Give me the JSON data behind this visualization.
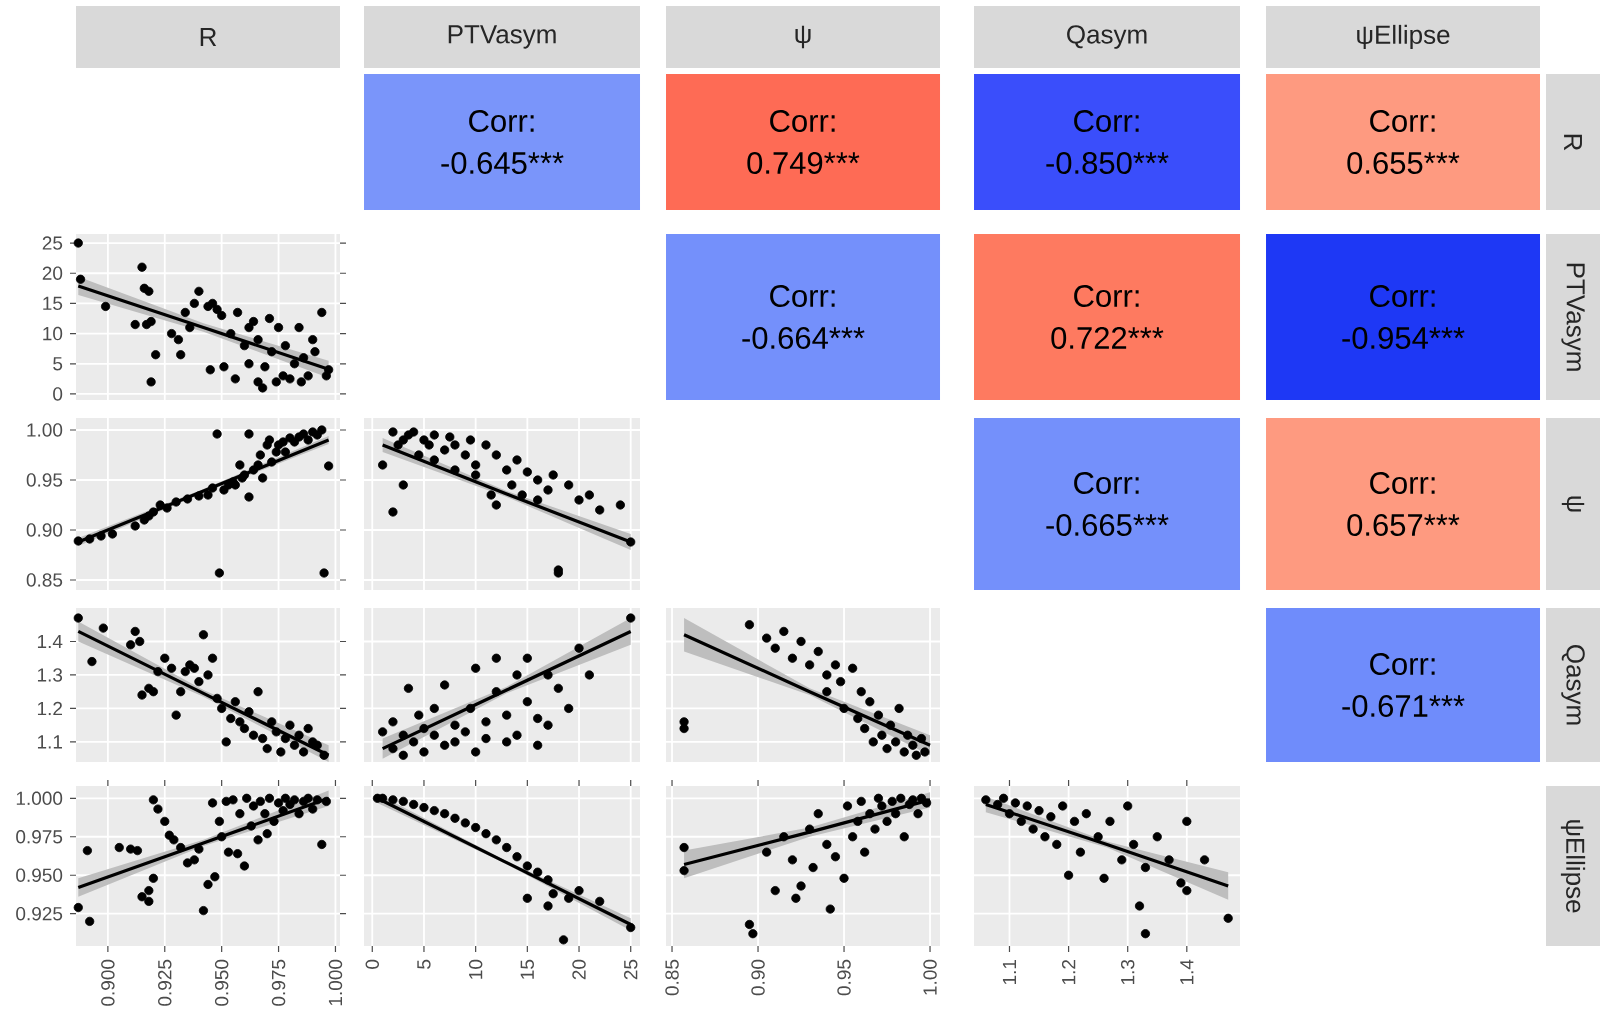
{
  "chart_data": [
    {
      "type": "other",
      "title": "R"
    },
    {
      "type": "other",
      "title": "PTVasym",
      "annotations": [
        "Corr: -0.645***"
      ],
      "colors": [
        "#7a95fa"
      ]
    },
    {
      "type": "other",
      "title": "ψ",
      "annotations": [
        "Corr: 0.749***"
      ],
      "colors": [
        "#fe6b55"
      ]
    },
    {
      "type": "other",
      "title": "Qasym",
      "annotations": [
        "Corr: -0.850***"
      ],
      "colors": [
        "#3a4efb"
      ]
    },
    {
      "type": "other",
      "title": "ψEllipse",
      "ylabel": "R",
      "annotations": [
        "Corr: 0.655***"
      ],
      "colors": [
        "#fe9a80"
      ]
    },
    {
      "type": "scatter",
      "xlim": [
        0.886,
        1.002
      ],
      "ylim": [
        -1,
        26.5
      ],
      "xticks": [
        0.9,
        0.925,
        0.95,
        0.975,
        1.0
      ],
      "yticks": [
        0,
        5,
        10,
        15,
        20,
        25
      ],
      "grid": true,
      "tick_labels": "y",
      "series": [
        {
          "type": "scatter",
          "marker": "circle",
          "color": "#000000",
          "x": [
            0.887,
            0.888,
            0.899,
            0.915,
            0.916,
            0.918,
            0.912,
            0.917,
            0.919,
            0.921,
            0.919,
            0.928,
            0.931,
            0.932,
            0.934,
            0.936,
            0.938,
            0.94,
            0.944,
            0.946,
            0.948,
            0.95,
            0.945,
            0.951,
            0.954,
            0.956,
            0.957,
            0.96,
            0.962,
            0.962,
            0.964,
            0.966,
            0.966,
            0.968,
            0.969,
            0.971,
            0.972,
            0.974,
            0.975,
            0.977,
            0.978,
            0.98,
            0.982,
            0.984,
            0.985,
            0.986,
            0.988,
            0.99,
            0.991,
            0.994,
            0.996,
            0.997
          ],
          "values": [
            25,
            19,
            14.5,
            21,
            17.5,
            17,
            11.5,
            11.5,
            12,
            6.5,
            2,
            10,
            9,
            6.5,
            13.5,
            11,
            15,
            17,
            14.5,
            15,
            14,
            13,
            4,
            4.5,
            10,
            2.5,
            13.5,
            8,
            11,
            5,
            12,
            9,
            2,
            1,
            4.5,
            12.5,
            7,
            2,
            11,
            3,
            8,
            2.5,
            5,
            11,
            2,
            6,
            3,
            9,
            7,
            13.5,
            3,
            4
          ]
        },
        {
          "type": "line",
          "color": "#000000",
          "x": [
            0.887,
            0.942,
            0.997
          ],
          "values": [
            17.9,
            11,
            4.1
          ],
          "lower": [
            16.4,
            10.3,
            2.7
          ],
          "upper": [
            19.4,
            11.7,
            5.5
          ]
        }
      ]
    },
    {
      "type": "other",
      "annotations": [
        "Corr: -0.664***"
      ],
      "colors": [
        "#7490fb"
      ]
    },
    {
      "type": "other",
      "annotations": [
        "Corr: 0.722***"
      ],
      "colors": [
        "#fe7a60"
      ]
    },
    {
      "type": "other",
      "ylabel": "PTVasym",
      "annotations": [
        "Corr: -0.954***"
      ],
      "colors": [
        "#1e38f5"
      ]
    },
    {
      "type": "scatter",
      "xlim": [
        0.886,
        1.002
      ],
      "ylim": [
        0.84,
        1.012
      ],
      "xticks": [
        0.9,
        0.925,
        0.95,
        0.975,
        1.0
      ],
      "yticks": [
        {
          "value": 0.85,
          "label": "0.85"
        },
        {
          "value": 0.9,
          "label": "0.90"
        },
        {
          "value": 0.95,
          "label": "0.95"
        },
        {
          "value": 1.0,
          "label": "1.00"
        }
      ],
      "grid": true,
      "tick_labels": "y",
      "series": [
        {
          "type": "scatter",
          "marker": "circle",
          "color": "#000000",
          "x": [
            0.887,
            0.892,
            0.897,
            0.902,
            0.912,
            0.916,
            0.918,
            0.92,
            0.923,
            0.926,
            0.93,
            0.935,
            0.94,
            0.944,
            0.946,
            0.948,
            0.949,
            0.951,
            0.953,
            0.955,
            0.956,
            0.958,
            0.959,
            0.96,
            0.962,
            0.962,
            0.964,
            0.966,
            0.967,
            0.968,
            0.97,
            0.971,
            0.972,
            0.974,
            0.975,
            0.977,
            0.978,
            0.98,
            0.982,
            0.984,
            0.986,
            0.988,
            0.99,
            0.992,
            0.994,
            0.995,
            0.997
          ],
          "values": [
            0.889,
            0.891,
            0.894,
            0.896,
            0.904,
            0.91,
            0.914,
            0.918,
            0.925,
            0.922,
            0.928,
            0.931,
            0.934,
            0.935,
            0.942,
            0.996,
            0.857,
            0.94,
            0.945,
            0.948,
            0.945,
            0.965,
            0.952,
            0.955,
            0.933,
            0.996,
            0.96,
            0.965,
            0.975,
            0.952,
            0.985,
            0.99,
            0.968,
            0.978,
            0.985,
            0.988,
            0.978,
            0.992,
            0.988,
            0.993,
            0.996,
            0.99,
            0.998,
            0.995,
            1.0,
            0.857,
            0.964
          ]
        },
        {
          "type": "line",
          "color": "#000000",
          "x": [
            0.887,
            0.942,
            0.997
          ],
          "values": [
            0.888,
            0.939,
            0.99
          ],
          "lower": [
            0.884,
            0.937,
            0.986
          ],
          "upper": [
            0.892,
            0.941,
            0.994
          ]
        }
      ]
    },
    {
      "type": "scatter",
      "xlim": [
        -0.8,
        25.9
      ],
      "ylim": [
        0.84,
        1.012
      ],
      "xticks": [
        0,
        5,
        10,
        15,
        20,
        25
      ],
      "yticks": [
        0.85,
        0.9,
        0.95,
        1.0
      ],
      "grid": true,
      "tick_labels": false,
      "series": [
        {
          "type": "scatter",
          "marker": "circle",
          "color": "#000000",
          "x": [
            1,
            2,
            2.5,
            3,
            3.5,
            3,
            4,
            4.5,
            5,
            5.5,
            6,
            6,
            7,
            7.5,
            8,
            8,
            9,
            9.5,
            10,
            10,
            11,
            11.5,
            12,
            12,
            13,
            13.5,
            14,
            14.5,
            15,
            16,
            16,
            17,
            17.5,
            18,
            18,
            19,
            20,
            21,
            22,
            24,
            25,
            2
          ],
          "values": [
            0.965,
            0.998,
            0.985,
            0.99,
            0.995,
            0.945,
            0.998,
            0.975,
            0.99,
            0.985,
            0.97,
            0.995,
            0.98,
            0.993,
            0.96,
            0.985,
            0.975,
            0.99,
            0.965,
            0.955,
            0.985,
            0.935,
            0.925,
            0.975,
            0.96,
            0.945,
            0.97,
            0.935,
            0.958,
            0.95,
            0.93,
            0.94,
            0.955,
            0.86,
            0.857,
            0.945,
            0.93,
            0.935,
            0.92,
            0.925,
            0.888,
            0.918
          ]
        },
        {
          "type": "line",
          "color": "#000000",
          "x": [
            1,
            13,
            25
          ],
          "values": [
            0.985,
            0.936,
            0.888
          ],
          "lower": [
            0.978,
            0.933,
            0.88
          ],
          "upper": [
            0.992,
            0.939,
            0.896
          ]
        }
      ]
    },
    {
      "type": "other",
      "annotations": [
        "Corr: -0.665***"
      ],
      "colors": [
        "#7490fb"
      ]
    },
    {
      "type": "other",
      "ylabel": "ψ",
      "annotations": [
        "Corr: 0.657***"
      ],
      "colors": [
        "#fe9a80"
      ]
    },
    {
      "type": "scatter",
      "xlim": [
        0.886,
        1.002
      ],
      "ylim": [
        1.04,
        1.5
      ],
      "xticks": [
        0.9,
        0.925,
        0.95,
        0.975,
        1.0
      ],
      "yticks": [
        1.1,
        1.2,
        1.3,
        1.4
      ],
      "grid": true,
      "tick_labels": "y",
      "series": [
        {
          "type": "scatter",
          "marker": "circle",
          "color": "#000000",
          "x": [
            0.887,
            0.893,
            0.898,
            0.91,
            0.912,
            0.914,
            0.915,
            0.918,
            0.92,
            0.922,
            0.925,
            0.928,
            0.93,
            0.932,
            0.934,
            0.936,
            0.938,
            0.94,
            0.942,
            0.944,
            0.946,
            0.948,
            0.95,
            0.952,
            0.954,
            0.956,
            0.958,
            0.96,
            0.962,
            0.964,
            0.966,
            0.968,
            0.97,
            0.972,
            0.974,
            0.976,
            0.978,
            0.98,
            0.982,
            0.984,
            0.986,
            0.988,
            0.99,
            0.992,
            0.995
          ],
          "values": [
            1.47,
            1.34,
            1.44,
            1.39,
            1.43,
            1.4,
            1.24,
            1.26,
            1.25,
            1.31,
            1.35,
            1.32,
            1.18,
            1.25,
            1.31,
            1.33,
            1.32,
            1.28,
            1.42,
            1.3,
            1.35,
            1.23,
            1.2,
            1.1,
            1.17,
            1.22,
            1.16,
            1.14,
            1.19,
            1.12,
            1.25,
            1.11,
            1.08,
            1.16,
            1.13,
            1.07,
            1.11,
            1.15,
            1.09,
            1.12,
            1.07,
            1.14,
            1.1,
            1.09,
            1.06
          ]
        },
        {
          "type": "line",
          "color": "#000000",
          "x": [
            0.887,
            0.942,
            0.997
          ],
          "values": [
            1.43,
            1.245,
            1.06
          ],
          "lower": [
            1.4,
            1.235,
            1.04
          ],
          "upper": [
            1.46,
            1.255,
            1.09
          ]
        }
      ]
    },
    {
      "type": "scatter",
      "xlim": [
        -0.8,
        25.9
      ],
      "ylim": [
        1.04,
        1.5
      ],
      "xticks": [
        0,
        5,
        10,
        15,
        20,
        25
      ],
      "yticks": [
        1.1,
        1.2,
        1.3,
        1.4
      ],
      "grid": true,
      "tick_labels": false,
      "series": [
        {
          "type": "scatter",
          "marker": "circle",
          "color": "#000000",
          "x": [
            1,
            2,
            2,
            3,
            3,
            3.5,
            4,
            4.5,
            5,
            5,
            6,
            6,
            7,
            7,
            8,
            8,
            9,
            9.5,
            10,
            10,
            11,
            11,
            12,
            12,
            13,
            13,
            14,
            14,
            15,
            15,
            16,
            16,
            17,
            17,
            18,
            19,
            20,
            21,
            25
          ],
          "values": [
            1.13,
            1.08,
            1.16,
            1.12,
            1.06,
            1.26,
            1.1,
            1.18,
            1.14,
            1.07,
            1.2,
            1.12,
            1.09,
            1.27,
            1.15,
            1.1,
            1.13,
            1.2,
            1.07,
            1.32,
            1.16,
            1.11,
            1.25,
            1.35,
            1.1,
            1.18,
            1.3,
            1.12,
            1.22,
            1.35,
            1.17,
            1.09,
            1.3,
            1.15,
            1.26,
            1.2,
            1.38,
            1.3,
            1.47
          ]
        },
        {
          "type": "line",
          "color": "#000000",
          "x": [
            1,
            13,
            25
          ],
          "values": [
            1.08,
            1.255,
            1.43
          ],
          "lower": [
            1.05,
            1.245,
            1.39
          ],
          "upper": [
            1.11,
            1.265,
            1.47
          ]
        }
      ]
    },
    {
      "type": "scatter",
      "xlim": [
        0.8465,
        1.0058
      ],
      "ylim": [
        1.04,
        1.5
      ],
      "xticks": [
        0.85,
        0.9,
        0.95,
        1.0
      ],
      "yticks": [
        1.1,
        1.2,
        1.3,
        1.4
      ],
      "grid": true,
      "tick_labels": false,
      "series": [
        {
          "type": "scatter",
          "marker": "circle",
          "color": "#000000",
          "x": [
            0.857,
            0.857,
            0.895,
            0.905,
            0.91,
            0.915,
            0.92,
            0.925,
            0.93,
            0.935,
            0.94,
            0.94,
            0.945,
            0.948,
            0.95,
            0.955,
            0.958,
            0.96,
            0.962,
            0.965,
            0.967,
            0.97,
            0.972,
            0.975,
            0.977,
            0.98,
            0.982,
            0.985,
            0.987,
            0.99,
            0.992,
            0.995,
            0.997
          ],
          "values": [
            1.16,
            1.14,
            1.45,
            1.41,
            1.38,
            1.43,
            1.35,
            1.4,
            1.33,
            1.37,
            1.3,
            1.25,
            1.33,
            1.28,
            1.2,
            1.32,
            1.17,
            1.25,
            1.14,
            1.22,
            1.1,
            1.18,
            1.12,
            1.08,
            1.15,
            1.1,
            1.2,
            1.07,
            1.12,
            1.09,
            1.06,
            1.11,
            1.07
          ]
        },
        {
          "type": "line",
          "color": "#000000",
          "x": [
            0.857,
            0.93,
            1.0
          ],
          "values": [
            1.42,
            1.25,
            1.09
          ],
          "lower": [
            1.37,
            1.24,
            1.06
          ],
          "upper": [
            1.47,
            1.26,
            1.12
          ]
        }
      ]
    },
    {
      "type": "other",
      "ylabel": "Qasym",
      "annotations": [
        "Corr: -0.671***"
      ],
      "colors": [
        "#6f8cfb"
      ]
    },
    {
      "type": "scatter",
      "xlim": [
        0.886,
        1.002
      ],
      "ylim": [
        0.904,
        1.008
      ],
      "xticks": [
        {
          "value": 0.9,
          "label": "0.900"
        },
        {
          "value": 0.925,
          "label": "0.925"
        },
        {
          "value": 0.95,
          "label": "0.950"
        },
        {
          "value": 0.975,
          "label": "0.975"
        },
        {
          "value": 1.0,
          "label": "1.000"
        }
      ],
      "yticks": [
        {
          "value": 0.925,
          "label": "0.925"
        },
        {
          "value": 0.95,
          "label": "0.950"
        },
        {
          "value": 0.975,
          "label": "0.975"
        },
        {
          "value": 1.0,
          "label": "1.000"
        }
      ],
      "grid": true,
      "series": [
        {
          "type": "scatter",
          "marker": "circle",
          "color": "#000000",
          "x": [
            0.887,
            0.892,
            0.891,
            0.905,
            0.91,
            0.913,
            0.915,
            0.918,
            0.918,
            0.92,
            0.92,
            0.922,
            0.925,
            0.927,
            0.929,
            0.932,
            0.935,
            0.938,
            0.94,
            0.942,
            0.944,
            0.946,
            0.947,
            0.949,
            0.95,
            0.952,
            0.953,
            0.955,
            0.957,
            0.958,
            0.96,
            0.961,
            0.963,
            0.964,
            0.966,
            0.967,
            0.969,
            0.97,
            0.971,
            0.973,
            0.975,
            0.977,
            0.978,
            0.98,
            0.982,
            0.984,
            0.986,
            0.988,
            0.99,
            0.992,
            0.994,
            0.996
          ],
          "values": [
            0.929,
            0.92,
            0.966,
            0.968,
            0.967,
            0.966,
            0.936,
            0.933,
            0.94,
            0.948,
            0.999,
            0.993,
            0.985,
            0.976,
            0.973,
            0.968,
            0.958,
            0.96,
            0.967,
            0.927,
            0.944,
            0.997,
            0.949,
            0.985,
            0.975,
            0.998,
            0.965,
            0.999,
            0.964,
            0.99,
            0.956,
            1.0,
            0.982,
            0.995,
            0.973,
            0.998,
            0.99,
            0.977,
            1.0,
            0.985,
            0.997,
            0.992,
            1.0,
            0.996,
            0.999,
            0.99,
            0.998,
            1.0,
            0.993,
            0.999,
            0.97,
            0.998
          ]
        },
        {
          "type": "line",
          "color": "#000000",
          "x": [
            0.887,
            0.942,
            0.997
          ],
          "values": [
            0.942,
            0.971,
            1.0
          ],
          "lower": [
            0.936,
            0.969,
            0.995
          ],
          "upper": [
            0.948,
            0.973,
            1.005
          ]
        }
      ]
    },
    {
      "type": "scatter",
      "xlim": [
        -0.8,
        25.9
      ],
      "ylim": [
        0.904,
        1.008
      ],
      "xticks": [
        0,
        5,
        10,
        15,
        20,
        25
      ],
      "yticks": [
        0.925,
        0.95,
        0.975,
        1.0
      ],
      "grid": true,
      "tick_labels": "x",
      "series": [
        {
          "type": "scatter",
          "marker": "circle",
          "color": "#000000",
          "x": [
            0.5,
            1,
            2,
            3,
            4,
            5,
            6,
            7,
            8,
            9,
            10,
            11,
            12,
            13,
            14,
            15,
            15,
            16,
            17,
            17,
            17.5,
            18.5,
            19,
            20,
            22,
            25
          ],
          "values": [
            1.0,
            1.0,
            0.999,
            0.998,
            0.996,
            0.994,
            0.992,
            0.99,
            0.987,
            0.984,
            0.981,
            0.977,
            0.973,
            0.968,
            0.962,
            0.956,
            0.935,
            0.952,
            0.947,
            0.93,
            0.938,
            0.908,
            0.935,
            0.94,
            0.933,
            0.916
          ]
        },
        {
          "type": "line",
          "color": "#000000",
          "x": [
            0.5,
            12.75,
            25
          ],
          "values": [
            1.0,
            0.959,
            0.918
          ],
          "lower": [
            0.997,
            0.958,
            0.914
          ],
          "upper": [
            1.003,
            0.96,
            0.922
          ]
        }
      ]
    },
    {
      "type": "scatter",
      "xlim": [
        0.8465,
        1.0058
      ],
      "ylim": [
        0.904,
        1.008
      ],
      "xticks": [
        {
          "value": 0.85,
          "label": "0.85"
        },
        {
          "value": 0.9,
          "label": "0.90"
        },
        {
          "value": 0.95,
          "label": "0.95"
        },
        {
          "value": 1.0,
          "label": "1.00"
        }
      ],
      "yticks": [
        0.925,
        0.95,
        0.975,
        1.0
      ],
      "grid": true,
      "tick_labels": "x",
      "series": [
        {
          "type": "scatter",
          "marker": "circle",
          "color": "#000000",
          "x": [
            0.857,
            0.857,
            0.895,
            0.897,
            0.905,
            0.91,
            0.915,
            0.92,
            0.922,
            0.925,
            0.93,
            0.932,
            0.935,
            0.94,
            0.942,
            0.945,
            0.95,
            0.952,
            0.955,
            0.958,
            0.96,
            0.962,
            0.965,
            0.968,
            0.97,
            0.972,
            0.975,
            0.978,
            0.98,
            0.983,
            0.985,
            0.988,
            0.99,
            0.993,
            0.995,
            0.998
          ],
          "values": [
            0.968,
            0.953,
            0.918,
            0.912,
            0.965,
            0.94,
            0.975,
            0.96,
            0.935,
            0.943,
            0.98,
            0.955,
            0.99,
            0.97,
            0.928,
            0.962,
            0.948,
            0.995,
            0.975,
            0.985,
            0.998,
            0.965,
            0.99,
            0.98,
            1.0,
            0.995,
            0.985,
            0.998,
            0.99,
            1.0,
            0.975,
            0.996,
            0.999,
            0.99,
            1.0,
            0.997
          ]
        },
        {
          "type": "line",
          "color": "#000000",
          "x": [
            0.857,
            0.93,
            1.0
          ],
          "values": [
            0.957,
            0.978,
            0.999
          ],
          "lower": [
            0.948,
            0.975,
            0.994
          ],
          "upper": [
            0.966,
            0.981,
            1.004
          ]
        }
      ]
    },
    {
      "type": "scatter",
      "xlim": [
        1.04,
        1.49
      ],
      "ylim": [
        0.904,
        1.008
      ],
      "xticks": [
        1.1,
        1.2,
        1.3,
        1.4
      ],
      "yticks": [
        0.925,
        0.95,
        0.975,
        1.0
      ],
      "grid": true,
      "tick_labels": "x",
      "series": [
        {
          "type": "scatter",
          "marker": "circle",
          "color": "#000000",
          "x": [
            1.06,
            1.08,
            1.09,
            1.1,
            1.11,
            1.12,
            1.13,
            1.14,
            1.15,
            1.16,
            1.17,
            1.18,
            1.19,
            1.2,
            1.21,
            1.22,
            1.23,
            1.25,
            1.26,
            1.27,
            1.29,
            1.3,
            1.31,
            1.32,
            1.33,
            1.33,
            1.35,
            1.37,
            1.39,
            1.4,
            1.4,
            1.43,
            1.47
          ],
          "values": [
            0.999,
            0.996,
            1.0,
            0.99,
            0.997,
            0.985,
            0.995,
            0.98,
            0.992,
            0.975,
            0.988,
            0.97,
            0.995,
            0.95,
            0.985,
            0.965,
            0.99,
            0.975,
            0.948,
            0.985,
            0.96,
            0.995,
            0.97,
            0.93,
            0.912,
            0.955,
            0.975,
            0.96,
            0.945,
            0.94,
            0.985,
            0.96,
            0.922
          ]
        },
        {
          "type": "line",
          "color": "#000000",
          "x": [
            1.06,
            1.265,
            1.47
          ],
          "values": [
            0.996,
            0.97,
            0.943
          ],
          "lower": [
            0.991,
            0.968,
            0.934
          ],
          "upper": [
            1.001,
            0.972,
            0.952
          ]
        }
      ]
    },
    {
      "type": "other",
      "ylabel": "ψEllipse"
    }
  ]
}
